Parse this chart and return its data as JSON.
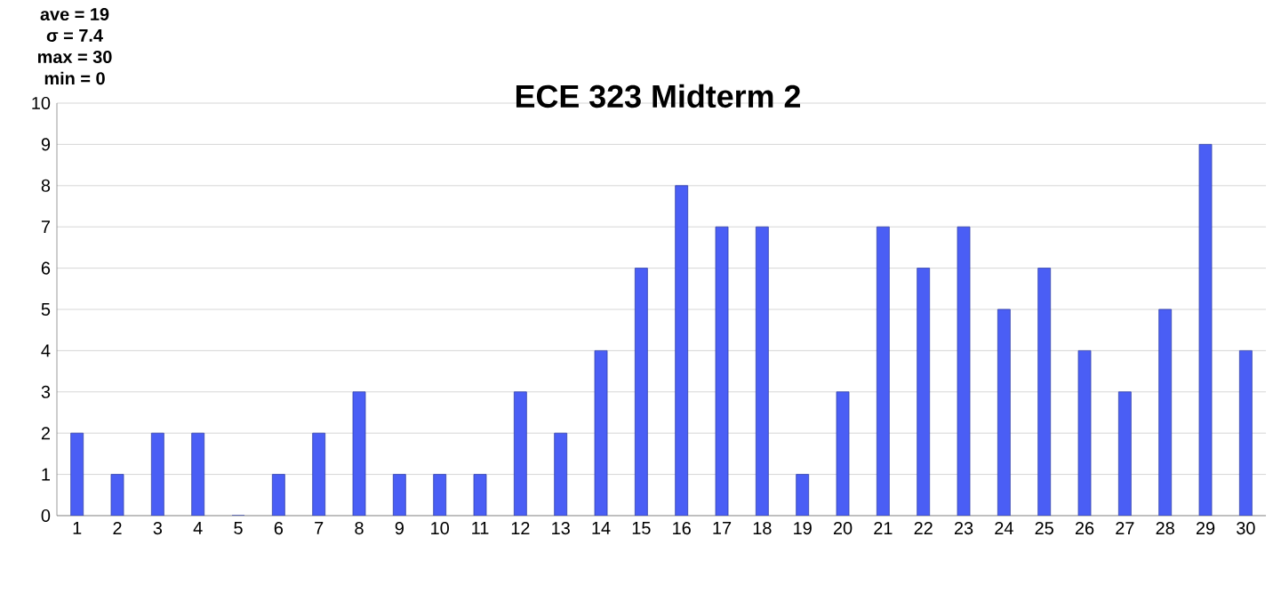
{
  "chart_data": {
    "type": "bar",
    "title": "ECE 323 Midterm 2",
    "annotations": [
      "ave = 19",
      "σ = 7.4",
      "max = 30",
      "min = 0"
    ],
    "categories": [
      "1",
      "2",
      "3",
      "4",
      "5",
      "6",
      "7",
      "8",
      "9",
      "10",
      "11",
      "12",
      "13",
      "14",
      "15",
      "16",
      "17",
      "18",
      "19",
      "20",
      "21",
      "22",
      "23",
      "24",
      "25",
      "26",
      "27",
      "28",
      "29",
      "30"
    ],
    "values": [
      2,
      1,
      2,
      2,
      0,
      1,
      2,
      3,
      1,
      1,
      1,
      3,
      2,
      4,
      6,
      8,
      7,
      7,
      1,
      3,
      7,
      6,
      7,
      5,
      6,
      4,
      3,
      5,
      9,
      4
    ],
    "color": "#4a5ef5",
    "ylim": [
      0,
      10
    ],
    "yticks": [
      0,
      1,
      2,
      3,
      4,
      5,
      6,
      7,
      8,
      9,
      10
    ],
    "grid": "y"
  }
}
